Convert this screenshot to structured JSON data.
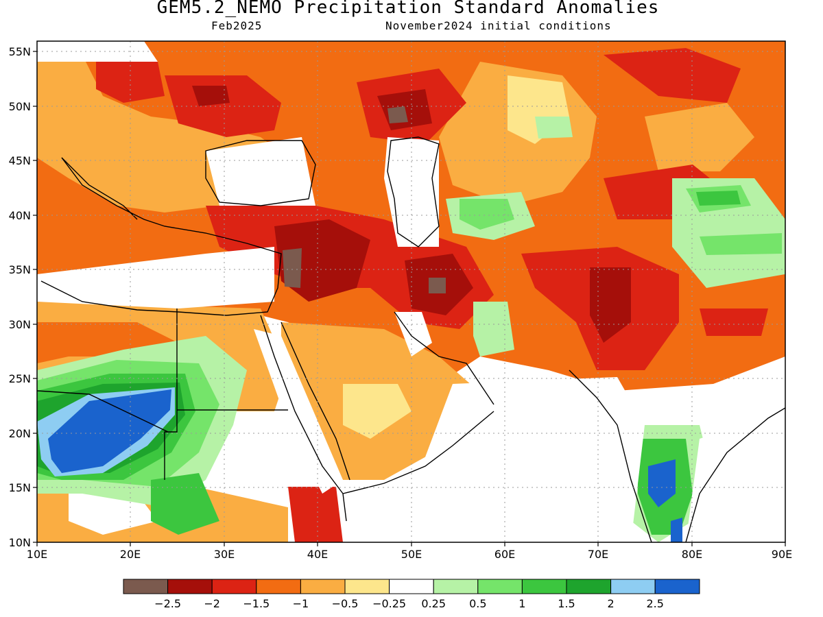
{
  "title": "GEM5.2_NEMO Precipitation Standard Anomalies",
  "target_month": "Feb2025",
  "initial_conditions": "November2024 initial conditions",
  "colors": {
    "le_-2.5": "#7b5a4e",
    "-2.5_-2": "#a50f0a",
    "-2_-1.5": "#dc2314",
    "-1.5_-1": "#f26c12",
    "-1_-0.5": "#faad42",
    "-0.5_-0.25": "#fde68c",
    "neutral": "#ffffff",
    "0.25_0.5": "#b6f2a6",
    "0.5_1": "#75e46a",
    "1_1.5": "#3cc63f",
    "1.5_2": "#1ea42d",
    "2_2.5": "#8ecdf2",
    "ge_2.5": "#1a63cd"
  },
  "map": {
    "lon_range": [
      10,
      90
    ],
    "lat_range": [
      10,
      56
    ],
    "lon_ticks": [
      "10E",
      "20E",
      "30E",
      "40E",
      "50E",
      "60E",
      "70E",
      "80E",
      "90E"
    ],
    "lat_ticks": [
      "10N",
      "15N",
      "20N",
      "25N",
      "30N",
      "35N",
      "40N",
      "45N",
      "50N",
      "55N"
    ],
    "grid": "dotted"
  },
  "legend": {
    "swatch_colors": [
      "#7b5a4e",
      "#a50f0a",
      "#dc2314",
      "#f26c12",
      "#faad42",
      "#fde68c",
      "#ffffff",
      "#b6f2a6",
      "#75e46a",
      "#3cc63f",
      "#1ea42d",
      "#8ecdf2",
      "#1a63cd"
    ],
    "labels": [
      "−2.5",
      "−2",
      "−1.5",
      "−1",
      "−0.5",
      "−0.25",
      "0.25",
      "0.5",
      "1",
      "1.5",
      "2",
      "2.5"
    ]
  }
}
